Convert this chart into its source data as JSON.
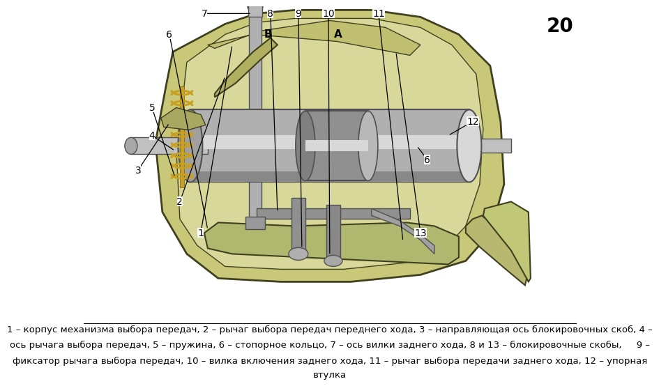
{
  "page_number": "20",
  "caption_line1": "1 – корпус механизма выбора передач, 2 – рычаг выбора передач переднего хода, 3 – направляющая ось блокировочных скоб, 4 –",
  "caption_line2": "ось рычага выбора передач, 5 – пружина, 6 – стопорное кольцо, 7 – ось вилки заднего хода, 8 и 13 – блокировочные скобы,     9 –",
  "caption_line3": "фиксатор рычага выбора передач, 10 – вилка включения заднего хода, 11 – рычаг выбора передачи заднего хода, 12 – упорная",
  "caption_line4": "втулка",
  "bg_color": "#ffffff",
  "sep_color": "#000000",
  "text_color": "#000000",
  "caption_fontsize": 9.5,
  "page_num_fontsize": 20,
  "housing_color": "#c8c878",
  "housing_edge": "#404020",
  "metal_light": "#d8d8d8",
  "metal_mid": "#b0b0b0",
  "metal_dark": "#505050",
  "metal_darker": "#383838",
  "spring_color": "#c8a020",
  "label_fontsize": 10
}
